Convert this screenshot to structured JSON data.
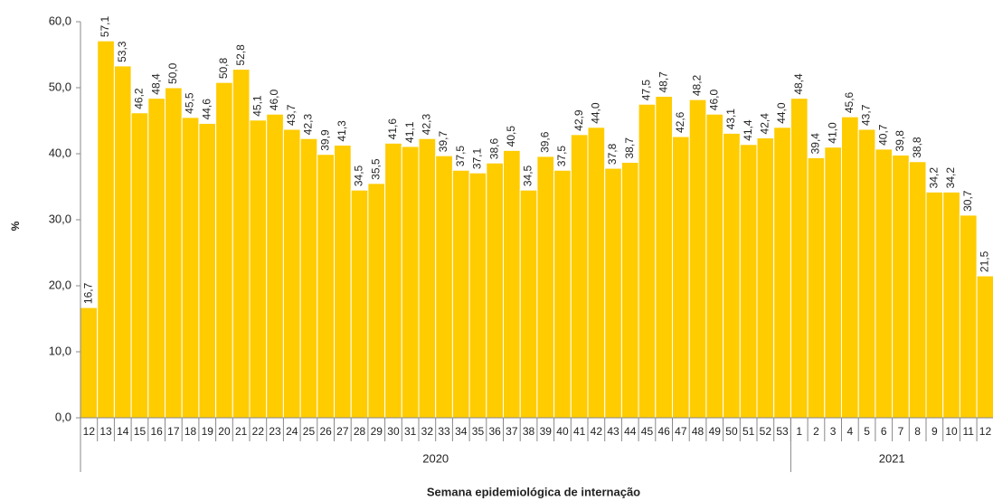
{
  "chart_data": {
    "type": "bar",
    "x_label": "Semana epidemiológica de internação",
    "y_label": "%",
    "categories": [
      "12",
      "13",
      "14",
      "15",
      "16",
      "17",
      "18",
      "19",
      "20",
      "21",
      "22",
      "23",
      "24",
      "25",
      "26",
      "27",
      "28",
      "29",
      "30",
      "31",
      "32",
      "33",
      "34",
      "35",
      "36",
      "37",
      "38",
      "39",
      "40",
      "41",
      "42",
      "43",
      "44",
      "45",
      "46",
      "47",
      "48",
      "49",
      "50",
      "51",
      "52",
      "53",
      "1",
      "2",
      "3",
      "4",
      "5",
      "6",
      "7",
      "8",
      "9",
      "10",
      "11",
      "12"
    ],
    "values": [
      16.7,
      57.1,
      53.3,
      46.2,
      48.4,
      50.0,
      45.5,
      44.6,
      50.8,
      52.8,
      45.1,
      46.0,
      43.7,
      42.3,
      39.9,
      41.3,
      34.5,
      35.5,
      41.6,
      41.1,
      42.3,
      39.7,
      37.5,
      37.1,
      38.6,
      40.5,
      34.5,
      39.6,
      37.5,
      42.9,
      44.0,
      37.8,
      38.7,
      47.5,
      48.7,
      42.6,
      48.2,
      46.0,
      43.1,
      41.4,
      42.4,
      44.0,
      48.4,
      39.4,
      41.0,
      45.6,
      43.7,
      40.7,
      39.8,
      38.8,
      34.2,
      34.2,
      30.7,
      21.5
    ],
    "value_labels": [
      "16,7",
      "57,1",
      "53,3",
      "46,2",
      "48,4",
      "50,0",
      "45,5",
      "44,6",
      "50,8",
      "52,8",
      "45,1",
      "46,0",
      "43,7",
      "42,3",
      "39,9",
      "41,3",
      "34,5",
      "35,5",
      "41,6",
      "41,1",
      "42,3",
      "39,7",
      "37,5",
      "37,1",
      "38,6",
      "40,5",
      "34,5",
      "39,6",
      "37,5",
      "42,9",
      "44,0",
      "37,8",
      "38,7",
      "47,5",
      "48,7",
      "42,6",
      "48,2",
      "46,0",
      "43,1",
      "41,4",
      "42,4",
      "44,0",
      "48,4",
      "39,4",
      "41,0",
      "45,6",
      "43,7",
      "40,7",
      "39,8",
      "38,8",
      "34,2",
      "34,2",
      "30,7",
      "21,5"
    ],
    "groups": [
      {
        "label": "2020",
        "count": 42
      },
      {
        "label": "2021",
        "count": 12
      }
    ],
    "color": "#ffcc00",
    "ylim": [
      0,
      60
    ],
    "yticks": [
      {
        "value": 0,
        "label": "0,0"
      },
      {
        "value": 10,
        "label": "10,0"
      },
      {
        "value": 20,
        "label": "20,0"
      },
      {
        "value": 30,
        "label": "30,0"
      },
      {
        "value": 40,
        "label": "40,0"
      },
      {
        "value": 50,
        "label": "50,0"
      },
      {
        "value": 60,
        "label": "60,0"
      }
    ],
    "grid": false
  }
}
